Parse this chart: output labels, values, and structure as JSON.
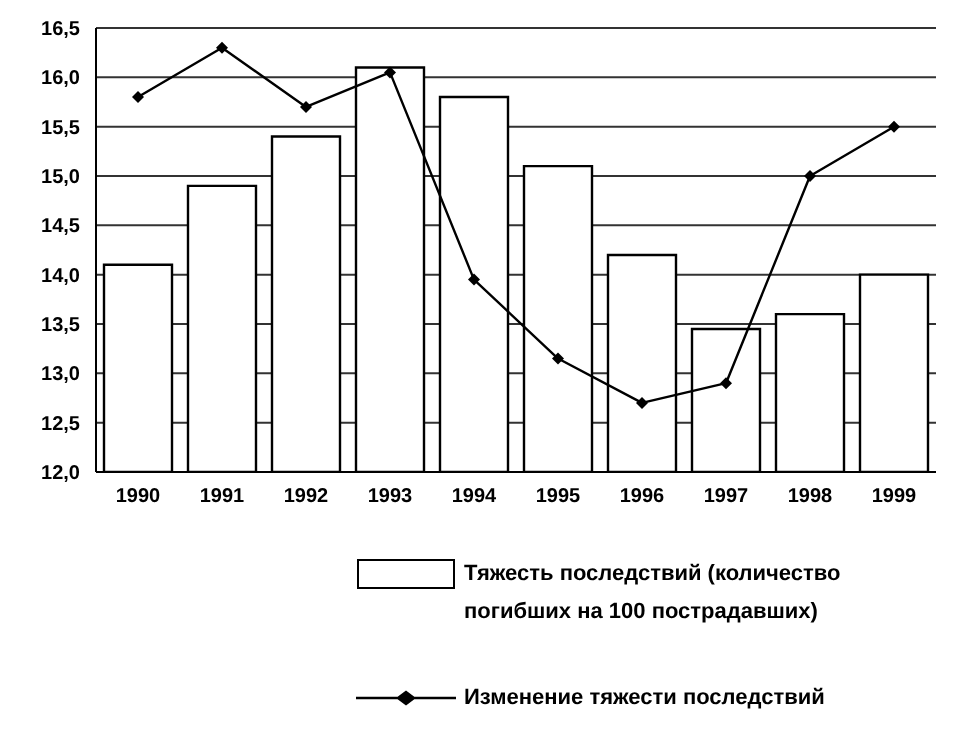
{
  "chart_data": {
    "type": "bar",
    "categories": [
      "1990",
      "1991",
      "1992",
      "1993",
      "1994",
      "1995",
      "1996",
      "1997",
      "1998",
      "1999"
    ],
    "series": [
      {
        "name": "Тяжесть последствий (количество погибших на 100 пострадавших)",
        "color": "#ffffff",
        "values": [
          14.1,
          14.9,
          15.4,
          16.1,
          15.8,
          15.1,
          14.2,
          13.45,
          13.6,
          14.0
        ]
      },
      {
        "name": "Изменение тяжести последствий",
        "type": "line",
        "color": "#000000",
        "marker": "diamond",
        "values": [
          15.8,
          16.3,
          15.7,
          16.05,
          13.95,
          13.15,
          12.7,
          12.9,
          15.0,
          15.5
        ]
      }
    ],
    "ylim": [
      12,
      16.5
    ],
    "yticks": [
      {
        "value": 12,
        "label": "12,0"
      },
      {
        "value": 12.5,
        "label": "12,5"
      },
      {
        "value": 13,
        "label": "13,0"
      },
      {
        "value": 13.5,
        "label": "13,5"
      },
      {
        "value": 14,
        "label": "14,0"
      },
      {
        "value": 14.5,
        "label": "14,5"
      },
      {
        "value": 15,
        "label": "15,0"
      },
      {
        "value": 15.5,
        "label": "15,5"
      },
      {
        "value": 16,
        "label": "16,0"
      },
      {
        "value": 16.5,
        "label": "16,5"
      }
    ],
    "grid": "y",
    "legend": "bottom"
  }
}
